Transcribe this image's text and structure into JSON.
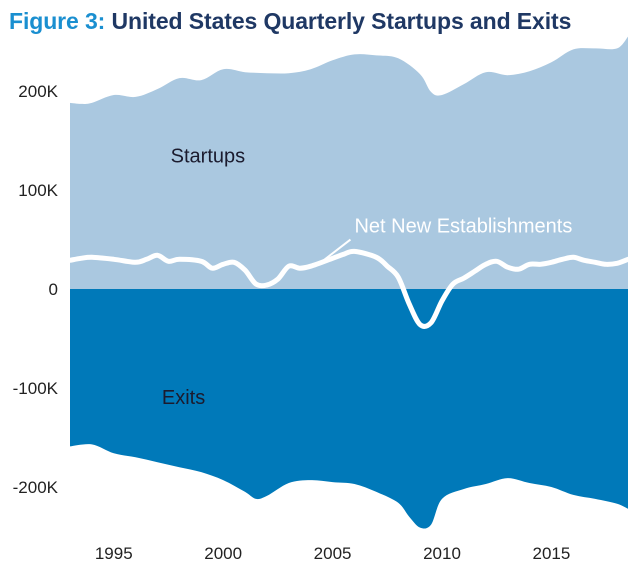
{
  "title": {
    "prefix": "Figure 3:",
    "text": "United States Quarterly Startups and Exits"
  },
  "colors": {
    "title_prefix": "#1a8fd0",
    "title_text": "#1f3864",
    "startups": "#aac8e0",
    "exits": "#0079b9",
    "net_line": "#ffffff",
    "label_dark": "#1b1b2e"
  },
  "chart_data": {
    "type": "area",
    "title": "United States Quarterly Startups and Exits",
    "xlim": [
      1993,
      2018.5
    ],
    "ylim": [
      -245000,
      255000
    ],
    "x_ticks": [
      1995,
      2000,
      2005,
      2010,
      2015
    ],
    "y_ticks": [
      {
        "value": 200000,
        "label": "200K"
      },
      {
        "value": 100000,
        "label": "100K"
      },
      {
        "value": 0,
        "label": "0"
      },
      {
        "value": -100000,
        "label": "-100K"
      },
      {
        "value": -200000,
        "label": "-200K"
      }
    ],
    "grid": false,
    "legend": "none",
    "series": [
      {
        "name": "Startups",
        "x": [
          1993,
          1993.5,
          1994,
          1995,
          1996,
          1997,
          1998,
          1999,
          2000,
          2001,
          2002,
          2003,
          2004,
          2005,
          2006,
          2007,
          2008,
          2009,
          2009.5,
          2010,
          2011,
          2012,
          2013,
          2014,
          2015,
          2016,
          2017,
          2018,
          2018.5
        ],
        "values": [
          188000,
          187000,
          188000,
          196000,
          194000,
          202000,
          213000,
          211000,
          222000,
          219000,
          218000,
          218000,
          222000,
          231000,
          237000,
          236000,
          233000,
          217000,
          199000,
          196000,
          207000,
          219000,
          216000,
          220000,
          229000,
          242000,
          243000,
          243000,
          255000
        ]
      },
      {
        "name": "Exits",
        "x": [
          1993,
          1994,
          1995,
          1996,
          1997,
          1998,
          1999,
          2000,
          2001,
          2001.5,
          2002,
          2003,
          2004,
          2005,
          2006,
          2007,
          2008,
          2008.5,
          2009,
          2009.5,
          2010,
          2011,
          2012,
          2013,
          2014,
          2015,
          2016,
          2017,
          2018,
          2018.5
        ],
        "values": [
          -159000,
          -157000,
          -166000,
          -170000,
          -175000,
          -180000,
          -185000,
          -193000,
          -205000,
          -212000,
          -209000,
          -196000,
          -193000,
          -195000,
          -197000,
          -205000,
          -216000,
          -230000,
          -241000,
          -238000,
          -212000,
          -202000,
          -197000,
          -191000,
          -196000,
          -200000,
          -208000,
          -212000,
          -217000,
          -222000
        ]
      },
      {
        "name": "Net New Establishments",
        "x": [
          1993,
          1993.5,
          1994,
          1995,
          1996,
          1996.5,
          1997,
          1997.5,
          1998,
          1999,
          1999.5,
          2000,
          2000.5,
          2001,
          2001.5,
          2002,
          2002.5,
          2003,
          2003.5,
          2004,
          2005,
          2005.5,
          2006,
          2007,
          2007.5,
          2008,
          2008.5,
          2009,
          2009.5,
          2010,
          2010.5,
          2011,
          2011.5,
          2012,
          2012.5,
          2013,
          2013.5,
          2014,
          2014.5,
          2015,
          2015.5,
          2016,
          2016.5,
          2017,
          2017.5,
          2018,
          2018.5
        ],
        "values": [
          29000,
          31000,
          32000,
          30000,
          27000,
          30000,
          34000,
          28000,
          30000,
          28000,
          21000,
          25000,
          27000,
          19000,
          5000,
          4000,
          10000,
          23000,
          21000,
          23000,
          31000,
          35000,
          38000,
          32000,
          23000,
          12000,
          -15000,
          -36000,
          -34000,
          -12000,
          5000,
          11000,
          18000,
          25000,
          28000,
          22000,
          20000,
          25000,
          25000,
          27000,
          30000,
          32000,
          29000,
          27000,
          25000,
          26000,
          30000
        ]
      }
    ],
    "annotations": [
      {
        "text": "Startups",
        "x": 1997.6,
        "y": 128000
      },
      {
        "text": "Exits",
        "x": 1997.2,
        "y": -116000
      },
      {
        "text": "Net New Establishments",
        "x": 2006,
        "y": 57000,
        "pointer_to": {
          "x": 2004.5,
          "y": 25000
        }
      }
    ]
  }
}
